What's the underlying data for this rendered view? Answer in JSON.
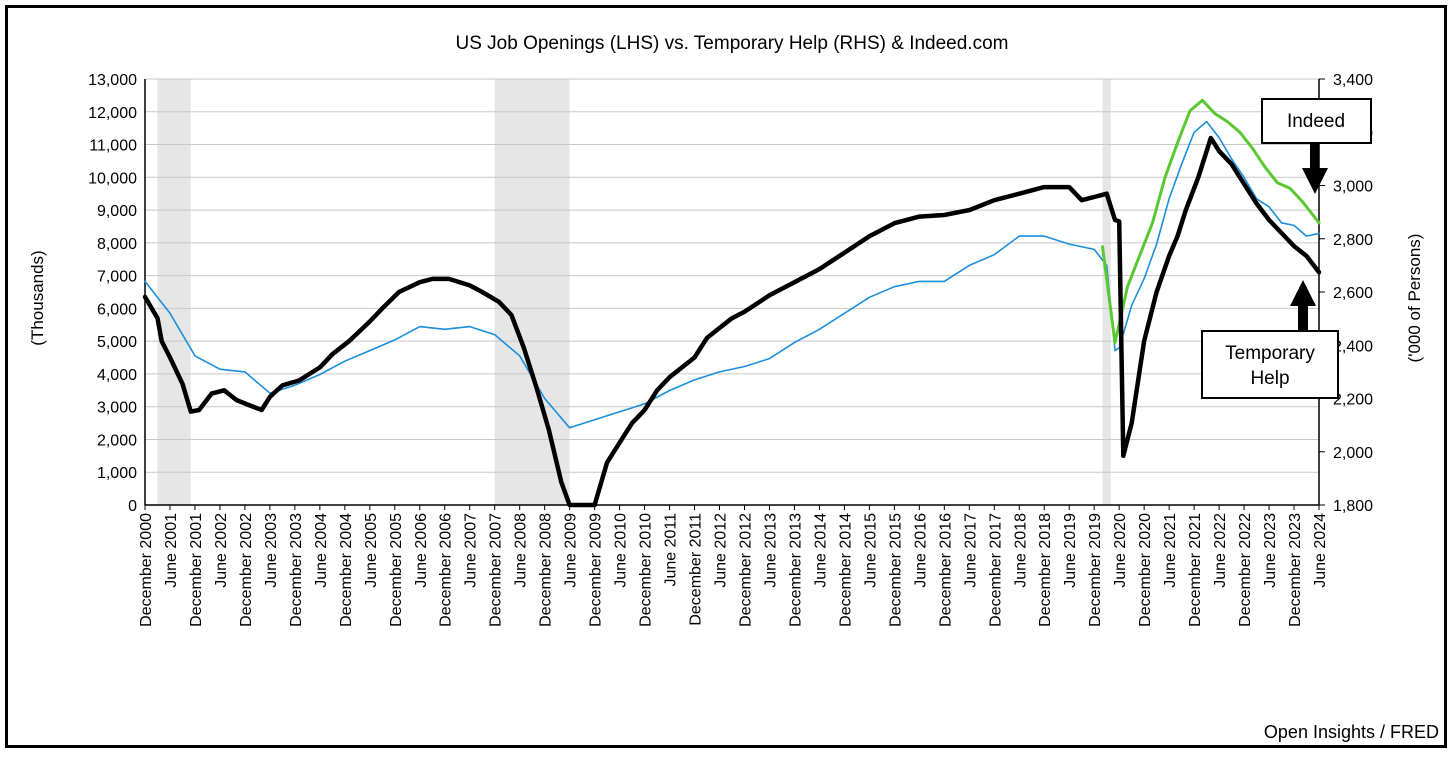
{
  "chart_data": {
    "type": "line",
    "title": "US Job Openings (LHS) vs. Temporary Help (RHS) & Indeed.com",
    "ylabel_left": "(Thousands)",
    "ylabel_right": "('000 of Persons)",
    "source": "Open Insights / FRED",
    "ylim_left": [
      0,
      13000
    ],
    "ylim_right": [
      1800,
      3400
    ],
    "yticks_left": [
      "0",
      "1,000",
      "2,000",
      "3,000",
      "4,000",
      "5,000",
      "6,000",
      "7,000",
      "8,000",
      "9,000",
      "10,000",
      "11,000",
      "12,000",
      "13,000"
    ],
    "yticks_right": [
      "1,800",
      "2,000",
      "2,200",
      "2,400",
      "2,600",
      "2,800",
      "3,000",
      "3,200",
      "3,400"
    ],
    "grid": true,
    "x_start": "December 2000",
    "x_end": "June 2024",
    "x_ticks": [
      "December 2000",
      "June 2001",
      "December 2001",
      "June 2002",
      "December 2002",
      "June 2003",
      "December 2003",
      "June 2004",
      "December 2004",
      "June 2005",
      "December 2005",
      "June 2006",
      "December 2006",
      "June 2007",
      "December 2007",
      "June 2008",
      "December 2008",
      "June 2009",
      "December 2009",
      "June 2010",
      "December 2010",
      "June 2011",
      "December 2011",
      "June 2012",
      "December 2012",
      "June 2013",
      "December 2013",
      "June 2014",
      "December 2014",
      "June 2015",
      "December 2015",
      "June 2016",
      "December 2016",
      "June 2017",
      "December 2017",
      "June 2018",
      "December 2018",
      "June 2019",
      "December 2019",
      "June 2020",
      "December 2020",
      "June 2021",
      "December 2021",
      "June 2022",
      "December 2022",
      "June 2023",
      "December 2023",
      "June 2024"
    ],
    "recessions": [
      {
        "start": "2001-03",
        "end": "2001-11"
      },
      {
        "start": "2007-12",
        "end": "2009-06"
      },
      {
        "start": "2020-02",
        "end": "2020-04"
      }
    ],
    "annotations": [
      {
        "text": "Indeed",
        "points_to": "Indeed"
      },
      {
        "text": "Temporary Help",
        "points_to": "Temporary Help"
      }
    ],
    "series": [
      {
        "name": "US Job Openings",
        "axis": "left",
        "color": "#000000",
        "points": [
          [
            "2000-12",
            6350
          ],
          [
            "2001-03",
            5700
          ],
          [
            "2001-04",
            5000
          ],
          [
            "2001-06",
            4500
          ],
          [
            "2001-09",
            3700
          ],
          [
            "2001-11",
            2850
          ],
          [
            "2002-01",
            2900
          ],
          [
            "2002-04",
            3400
          ],
          [
            "2002-07",
            3500
          ],
          [
            "2002-10",
            3200
          ],
          [
            "2003-01",
            3050
          ],
          [
            "2003-04",
            2900
          ],
          [
            "2003-06",
            3300
          ],
          [
            "2003-09",
            3650
          ],
          [
            "2004-01",
            3800
          ],
          [
            "2004-06",
            4200
          ],
          [
            "2004-09",
            4600
          ],
          [
            "2005-01",
            5000
          ],
          [
            "2005-06",
            5600
          ],
          [
            "2005-09",
            6000
          ],
          [
            "2006-01",
            6500
          ],
          [
            "2006-06",
            6800
          ],
          [
            "2006-09",
            6900
          ],
          [
            "2007-01",
            6900
          ],
          [
            "2007-06",
            6700
          ],
          [
            "2007-09",
            6500
          ],
          [
            "2008-01",
            6200
          ],
          [
            "2008-04",
            5800
          ],
          [
            "2008-07",
            4800
          ],
          [
            "2008-10",
            3600
          ],
          [
            "2009-01",
            2300
          ],
          [
            "2009-04",
            700
          ],
          [
            "2009-06",
            0
          ],
          [
            "2009-09",
            0
          ],
          [
            "2009-12",
            0
          ],
          [
            "2010-03",
            1300
          ],
          [
            "2010-06",
            1900
          ],
          [
            "2010-09",
            2500
          ],
          [
            "2010-12",
            2900
          ],
          [
            "2011-03",
            3500
          ],
          [
            "2011-06",
            3900
          ],
          [
            "2011-09",
            4200
          ],
          [
            "2011-12",
            4500
          ],
          [
            "2012-03",
            5100
          ],
          [
            "2012-06",
            5400
          ],
          [
            "2012-09",
            5700
          ],
          [
            "2012-12",
            5900
          ],
          [
            "2013-06",
            6400
          ],
          [
            "2013-12",
            6800
          ],
          [
            "2014-06",
            7200
          ],
          [
            "2014-12",
            7700
          ],
          [
            "2015-06",
            8200
          ],
          [
            "2015-12",
            8600
          ],
          [
            "2016-06",
            8800
          ],
          [
            "2016-12",
            8850
          ],
          [
            "2017-06",
            9000
          ],
          [
            "2017-12",
            9300
          ],
          [
            "2018-06",
            9500
          ],
          [
            "2018-12",
            9700
          ],
          [
            "2019-06",
            9700
          ],
          [
            "2019-09",
            9300
          ],
          [
            "2019-12",
            9400
          ],
          [
            "2020-03",
            9500
          ],
          [
            "2020-05",
            8700
          ],
          [
            "2020-06",
            8650
          ],
          [
            "2020-07",
            1500
          ],
          [
            "2020-09",
            2500
          ],
          [
            "2020-12",
            5000
          ],
          [
            "2021-03",
            6500
          ],
          [
            "2021-06",
            7600
          ],
          [
            "2021-08",
            8200
          ],
          [
            "2021-10",
            9000
          ],
          [
            "2022-01",
            10000
          ],
          [
            "2022-04",
            11200
          ],
          [
            "2022-06",
            10800
          ],
          [
            "2022-09",
            10400
          ],
          [
            "2022-12",
            9800
          ],
          [
            "2023-03",
            9200
          ],
          [
            "2023-06",
            8700
          ],
          [
            "2023-09",
            8300
          ],
          [
            "2023-12",
            7900
          ],
          [
            "2024-03",
            7600
          ],
          [
            "2024-06",
            7100
          ]
        ]
      },
      {
        "name": "Temporary Help",
        "axis": "right",
        "color": "#1a8fdc",
        "points": [
          [
            "2000-12",
            2640
          ],
          [
            "2001-06",
            2520
          ],
          [
            "2001-12",
            2360
          ],
          [
            "2002-06",
            2310
          ],
          [
            "2002-12",
            2300
          ],
          [
            "2003-06",
            2220
          ],
          [
            "2003-12",
            2250
          ],
          [
            "2004-06",
            2290
          ],
          [
            "2004-12",
            2340
          ],
          [
            "2005-06",
            2380
          ],
          [
            "2005-12",
            2420
          ],
          [
            "2006-06",
            2470
          ],
          [
            "2006-12",
            2460
          ],
          [
            "2007-06",
            2470
          ],
          [
            "2007-12",
            2440
          ],
          [
            "2008-06",
            2360
          ],
          [
            "2008-12",
            2200
          ],
          [
            "2009-06",
            2090
          ],
          [
            "2009-12",
            2120
          ],
          [
            "2010-06",
            2150
          ],
          [
            "2010-12",
            2180
          ],
          [
            "2011-06",
            2230
          ],
          [
            "2011-12",
            2270
          ],
          [
            "2012-06",
            2300
          ],
          [
            "2012-12",
            2320
          ],
          [
            "2013-06",
            2350
          ],
          [
            "2013-12",
            2410
          ],
          [
            "2014-06",
            2460
          ],
          [
            "2014-12",
            2520
          ],
          [
            "2015-06",
            2580
          ],
          [
            "2015-12",
            2620
          ],
          [
            "2016-06",
            2640
          ],
          [
            "2016-12",
            2640
          ],
          [
            "2017-06",
            2700
          ],
          [
            "2017-12",
            2740
          ],
          [
            "2018-06",
            2810
          ],
          [
            "2018-12",
            2810
          ],
          [
            "2019-06",
            2780
          ],
          [
            "2019-12",
            2760
          ],
          [
            "2020-03",
            2700
          ],
          [
            "2020-05",
            2380
          ],
          [
            "2020-06",
            2390
          ],
          [
            "2020-09",
            2550
          ],
          [
            "2020-12",
            2650
          ],
          [
            "2021-03",
            2780
          ],
          [
            "2021-06",
            2950
          ],
          [
            "2021-09",
            3080
          ],
          [
            "2021-12",
            3200
          ],
          [
            "2022-03",
            3240
          ],
          [
            "2022-06",
            3180
          ],
          [
            "2022-09",
            3100
          ],
          [
            "2022-12",
            3030
          ],
          [
            "2023-03",
            2950
          ],
          [
            "2023-06",
            2920
          ],
          [
            "2023-09",
            2860
          ],
          [
            "2023-12",
            2850
          ],
          [
            "2024-03",
            2810
          ],
          [
            "2024-06",
            2820
          ]
        ]
      },
      {
        "name": "Indeed",
        "axis": "right",
        "color": "#5ac832",
        "points": [
          [
            "2020-02",
            2770
          ],
          [
            "2020-05",
            2410
          ],
          [
            "2020-08",
            2620
          ],
          [
            "2020-11",
            2740
          ],
          [
            "2021-02",
            2860
          ],
          [
            "2021-05",
            3030
          ],
          [
            "2021-08",
            3160
          ],
          [
            "2021-11",
            3280
          ],
          [
            "2022-02",
            3320
          ],
          [
            "2022-05",
            3270
          ],
          [
            "2022-08",
            3240
          ],
          [
            "2022-11",
            3200
          ],
          [
            "2023-02",
            3140
          ],
          [
            "2023-05",
            3070
          ],
          [
            "2023-08",
            3010
          ],
          [
            "2023-11",
            2990
          ],
          [
            "2024-02",
            2940
          ],
          [
            "2024-06",
            2860
          ]
        ]
      }
    ]
  }
}
